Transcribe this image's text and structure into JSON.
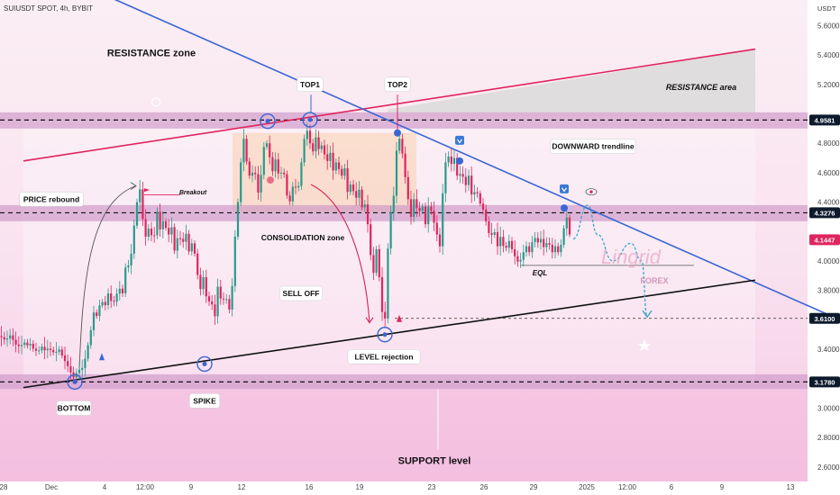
{
  "header": {
    "symbol_line": "SUIUSDT SPOT, 4h, BYBIT",
    "currency": "USDT"
  },
  "colors": {
    "up": "#2a9a8a",
    "down": "#e0245e",
    "resistance_line": "#e0245e",
    "downtrend_line": "#3a66d4",
    "support_line": "#111111",
    "zone": "#c98fc5",
    "badge": "#0c1a2c",
    "price_badge": "#e0245e"
  },
  "chart_data": {
    "type": "candlestick",
    "timeframe": "4h",
    "y_axis": {
      "range": [
        2.52,
        5.82
      ],
      "ticks": [
        "5.6000",
        "5.4000",
        "5.2000",
        "4.8000",
        "4.6000",
        "4.4000",
        "4.0000",
        "3.8000",
        "3.4000",
        "3.0000",
        "2.8000",
        "2.6000"
      ],
      "badges": [
        {
          "label": "4.9581",
          "value": 4.9581
        },
        {
          "label": "4.3276",
          "value": 4.3276
        },
        {
          "label": "4.1447",
          "value": 4.1447,
          "current": true
        },
        {
          "label": "3.6100",
          "value": 3.61
        },
        {
          "label": "3.1780",
          "value": 3.178
        }
      ]
    },
    "x_axis": {
      "ticks": [
        "28",
        "Dec",
        "4",
        "12:00",
        "9",
        "12",
        "16",
        "19",
        "23",
        "26",
        "29",
        "2025",
        "12:00",
        "6",
        "9",
        "13"
      ]
    },
    "price_path": [
      [
        0,
        3.49
      ],
      [
        6,
        3.46
      ],
      [
        12,
        3.5
      ],
      [
        16,
        3.44
      ],
      [
        20,
        3.42
      ],
      [
        24,
        3.43
      ],
      [
        28,
        3.45
      ],
      [
        31,
        3.42
      ],
      [
        34,
        3.44
      ],
      [
        36,
        3.4
      ],
      [
        38,
        3.41
      ],
      [
        40,
        3.39
      ],
      [
        42,
        3.38
      ],
      [
        44,
        3.4
      ],
      [
        46,
        3.42
      ],
      [
        50,
        3.39
      ],
      [
        54,
        3.41
      ],
      [
        58,
        3.38
      ],
      [
        62,
        3.38
      ],
      [
        66,
        3.4
      ],
      [
        70,
        3.34
      ],
      [
        74,
        3.3
      ],
      [
        78,
        3.25
      ],
      [
        81,
        3.2
      ],
      [
        84,
        3.25
      ],
      [
        86,
        3.22
      ],
      [
        89,
        3.28
      ],
      [
        92,
        3.27
      ],
      [
        96,
        3.38
      ],
      [
        100,
        3.5
      ],
      [
        104,
        3.65
      ],
      [
        108,
        3.62
      ],
      [
        112,
        3.75
      ],
      [
        116,
        3.68
      ],
      [
        120,
        3.78
      ],
      [
        125,
        3.7
      ],
      [
        128,
        3.75
      ],
      [
        132,
        3.82
      ],
      [
        136,
        3.78
      ],
      [
        140,
        4.0
      ],
      [
        144,
        3.95
      ],
      [
        148,
        4.2
      ],
      [
        152,
        4.4
      ],
      [
        155,
        4.5
      ],
      [
        158,
        4.3
      ],
      [
        162,
        4.15
      ],
      [
        166,
        4.25
      ],
      [
        170,
        4.1
      ],
      [
        174,
        4.35
      ],
      [
        178,
        4.2
      ],
      [
        182,
        4.3
      ],
      [
        186,
        4.15
      ],
      [
        190,
        4.25
      ],
      [
        194,
        4.05
      ],
      [
        198,
        4.2
      ],
      [
        202,
        4.1
      ],
      [
        206,
        4.2
      ],
      [
        210,
        4.05
      ],
      [
        214,
        4.15
      ],
      [
        218,
        3.95
      ],
      [
        222,
        3.8
      ],
      [
        226,
        3.9
      ],
      [
        230,
        3.7
      ],
      [
        234,
        3.75
      ],
      [
        238,
        3.6
      ],
      [
        242,
        3.85
      ],
      [
        246,
        3.7
      ],
      [
        250,
        3.78
      ],
      [
        254,
        3.65
      ],
      [
        258,
        3.85
      ],
      [
        262,
        4.3
      ],
      [
        265,
        4.45
      ],
      [
        268,
        4.75
      ],
      [
        271,
        4.85
      ],
      [
        274,
        4.65
      ],
      [
        278,
        4.55
      ],
      [
        282,
        4.65
      ],
      [
        286,
        4.45
      ],
      [
        290,
        4.6
      ],
      [
        294,
        4.85
      ],
      [
        298,
        4.75
      ],
      [
        302,
        4.6
      ],
      [
        306,
        4.7
      ],
      [
        310,
        4.55
      ],
      [
        314,
        4.65
      ],
      [
        318,
        4.45
      ],
      [
        322,
        4.4
      ],
      [
        326,
        4.55
      ],
      [
        330,
        4.45
      ],
      [
        334,
        4.65
      ],
      [
        338,
        4.85
      ],
      [
        342,
        4.9
      ],
      [
        346,
        4.7
      ],
      [
        350,
        4.85
      ],
      [
        354,
        4.75
      ],
      [
        358,
        4.8
      ],
      [
        362,
        4.65
      ],
      [
        366,
        4.75
      ],
      [
        370,
        4.6
      ],
      [
        374,
        4.7
      ],
      [
        378,
        4.55
      ],
      [
        382,
        4.65
      ],
      [
        386,
        4.45
      ],
      [
        390,
        4.55
      ],
      [
        394,
        4.4
      ],
      [
        398,
        4.5
      ],
      [
        402,
        4.35
      ],
      [
        406,
        4.4
      ],
      [
        410,
        4.1
      ],
      [
        414,
        3.9
      ],
      [
        418,
        4.1
      ],
      [
        422,
        3.8
      ],
      [
        425,
        3.58
      ],
      [
        428,
        3.62
      ],
      [
        431,
        4.2
      ],
      [
        434,
        4.35
      ],
      [
        437,
        4.45
      ],
      [
        440,
        4.75
      ],
      [
        444,
        4.85
      ],
      [
        448,
        4.65
      ],
      [
        452,
        4.45
      ],
      [
        456,
        4.3
      ],
      [
        460,
        4.45
      ],
      [
        464,
        4.3
      ],
      [
        468,
        4.4
      ],
      [
        472,
        4.25
      ],
      [
        476,
        4.4
      ],
      [
        480,
        4.3
      ],
      [
        484,
        4.2
      ],
      [
        488,
        4.1
      ],
      [
        492,
        4.55
      ],
      [
        496,
        4.75
      ],
      [
        500,
        4.65
      ],
      [
        504,
        4.7
      ],
      [
        508,
        4.55
      ],
      [
        512,
        4.62
      ],
      [
        516,
        4.5
      ],
      [
        520,
        4.58
      ],
      [
        524,
        4.42
      ],
      [
        528,
        4.5
      ],
      [
        532,
        4.4
      ],
      [
        536,
        4.35
      ],
      [
        540,
        4.25
      ],
      [
        544,
        4.15
      ],
      [
        548,
        4.22
      ],
      [
        552,
        4.1
      ],
      [
        556,
        4.18
      ],
      [
        560,
        4.05
      ],
      [
        564,
        4.15
      ],
      [
        568,
        4.08
      ],
      [
        572,
        4.02
      ],
      [
        576,
        3.98
      ],
      [
        580,
        4.05
      ],
      [
        584,
        4.1
      ],
      [
        588,
        4.05
      ],
      [
        592,
        4.18
      ],
      [
        596,
        4.12
      ],
      [
        600,
        4.15
      ],
      [
        604,
        4.08
      ],
      [
        608,
        4.15
      ],
      [
        612,
        4.05
      ],
      [
        616,
        4.1
      ],
      [
        620,
        4.05
      ],
      [
        624,
        4.15
      ],
      [
        628,
        4.33
      ],
      [
        631,
        4.2
      ],
      [
        634,
        4.14
      ]
    ],
    "forecast": [
      [
        636,
        4.15
      ],
      [
        652,
        4.38
      ],
      [
        663,
        4.18
      ],
      [
        680,
        4.0
      ],
      [
        700,
        4.12
      ],
      [
        712,
        4.0
      ],
      [
        718,
        3.62
      ]
    ],
    "trendlines": [
      {
        "name": "resistance",
        "from": [
          26,
          4.68
        ],
        "to": [
          838,
          5.44
        ]
      },
      {
        "name": "downtrend",
        "from": [
          108,
          5.83
        ],
        "to": [
          932,
          3.6
        ]
      },
      {
        "name": "support",
        "from": [
          26,
          3.14
        ],
        "to": [
          838,
          3.87
        ]
      }
    ],
    "zones": [
      {
        "name": "resistance-zone",
        "from": 4.9,
        "to": 5.01
      },
      {
        "name": "consolidation-zone",
        "from": 4.27,
        "to": 4.38
      },
      {
        "name": "support-zone",
        "from": 3.13,
        "to": 3.23
      }
    ],
    "annotations": [
      {
        "text": "RESISTANCE zone",
        "x": 168,
        "value": 5.41
      },
      {
        "text": "RESISTANCE area",
        "x": 778,
        "value": 5.18
      },
      {
        "text": "TOP1",
        "x": 344,
        "value": 5.2
      },
      {
        "text": "TOP2",
        "x": 441,
        "value": 5.2
      },
      {
        "text": "DOWNWARD trendline",
        "x": 658,
        "value": 4.78
      },
      {
        "text": "PRICE rebound",
        "x": 57,
        "value": 4.42
      },
      {
        "text": "Breakout",
        "x": 214,
        "value": 4.47
      },
      {
        "text": "CONSOLIDATION zone",
        "x": 336,
        "value": 4.16
      },
      {
        "text": "SELL OFF",
        "x": 334,
        "value": 3.78
      },
      {
        "text": "EQL",
        "x": 599,
        "value": 3.92
      },
      {
        "text": "LEVEL rejection",
        "x": 426,
        "value": 3.35
      },
      {
        "text": "BOTTOM",
        "x": 82,
        "value": 3.0
      },
      {
        "text": "SPIKE",
        "x": 227,
        "value": 3.05
      },
      {
        "text": "SUPPORT level",
        "x": 482,
        "value": 2.64
      }
    ],
    "watermark": {
      "brand": "Lingrid",
      "sub": "FOREX"
    }
  }
}
